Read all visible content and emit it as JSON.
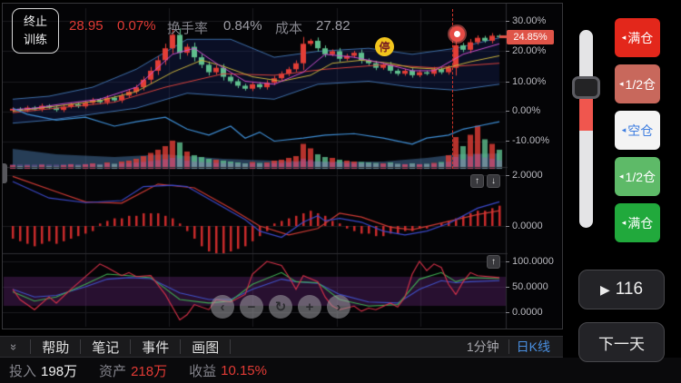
{
  "header": {
    "stop_training_line1": "终止",
    "stop_training_line2": "训练",
    "price": "28.95",
    "change_pct": "0.07%",
    "turnover_label": "换手率",
    "turnover_value": "0.84%",
    "cost_label": "成本",
    "cost_value": "27.82"
  },
  "axis": {
    "main_ticks": [
      "30.00%",
      "20.00%",
      "10.00%",
      "0.00%",
      "-10.00%"
    ],
    "current_tag": "24.85%",
    "macd_ticks": [
      "2.0000",
      "0.0000"
    ],
    "kdj_ticks": [
      "100.0000",
      "50.0000",
      "0.0000"
    ]
  },
  "markers": {
    "pause_badge": "停"
  },
  "icons": {
    "collapse": "»",
    "up_arrow": "↑",
    "down_arrow": "↓",
    "pos_arrow": "◂",
    "play": "▶"
  },
  "nav_buttons": [
    "‹",
    "−",
    "↻",
    "+",
    "›"
  ],
  "sidebar": {
    "positions": [
      {
        "label": "满仓"
      },
      {
        "label": "1/2仓"
      },
      {
        "label": "空仓"
      },
      {
        "label": "1/2仓"
      },
      {
        "label": "满仓"
      }
    ],
    "play_count": "116",
    "next_day": "下一天"
  },
  "toolbar": {
    "items": [
      "帮助",
      "笔记",
      "事件",
      "画图"
    ],
    "interval": "1分钟",
    "chart_type": "日K线"
  },
  "account": {
    "invest_label": "投入",
    "invest_value": "198万",
    "asset_label": "资产",
    "asset_value": "218万",
    "profit_label": "收益",
    "profit_value": "10.15%"
  },
  "chart_data": {
    "type": "candlestick",
    "panels": [
      "kline+volume",
      "macd",
      "kdj"
    ],
    "y_axis_main_pct": [
      30,
      20,
      10,
      0,
      -10
    ],
    "current_change_pct": 24.85,
    "macd_axis": [
      2.0,
      0.0
    ],
    "kdj_axis": [
      100.0,
      50.0,
      0.0
    ],
    "first_open_pct": 0.2,
    "closes_pct": [
      0.8,
      0.3,
      1.2,
      0.6,
      1.8,
      1.2,
      0.4,
      1.5,
      2.3,
      1.6,
      2.8,
      3.8,
      3.0,
      4.5,
      3.6,
      5.2,
      6.5,
      8.0,
      10.5,
      13.5,
      17.0,
      21.0,
      25.5,
      19.5,
      21.5,
      18.0,
      15.5,
      13.0,
      14.5,
      11.5,
      10.0,
      8.5,
      7.5,
      9.0,
      8.0,
      9.5,
      11.0,
      12.5,
      14.0,
      16.0,
      22.5,
      23.5,
      21.0,
      19.0,
      20.0,
      17.5,
      18.5,
      19.5,
      17.0,
      16.0,
      14.5,
      15.5,
      13.5,
      12.5,
      13.5,
      12.0,
      13.0,
      12.5,
      14.0,
      13.0,
      14.5,
      22.0,
      20.5,
      23.0,
      24.5,
      23.5,
      25.2,
      24.85
    ],
    "volumes": [
      8,
      6,
      7,
      5,
      9,
      6,
      5,
      8,
      10,
      7,
      10,
      12,
      9,
      14,
      11,
      16,
      18,
      22,
      28,
      35,
      42,
      50,
      62,
      58,
      38,
      30,
      26,
      22,
      20,
      18,
      16,
      14,
      12,
      15,
      13,
      14,
      18,
      20,
      24,
      28,
      55,
      45,
      32,
      26,
      24,
      20,
      18,
      16,
      15,
      14,
      13,
      12,
      14,
      11,
      10,
      12,
      10,
      11,
      13,
      15,
      30,
      70,
      50,
      75,
      95,
      65,
      55,
      42
    ],
    "macd_hist": [
      -0.5,
      -0.6,
      -0.7,
      -0.8,
      -0.7,
      -0.6,
      -0.7,
      -0.6,
      -0.5,
      -0.4,
      -0.3,
      -0.2,
      0.1,
      0.2,
      0.3,
      0.3,
      0.4,
      0.4,
      0.5,
      0.5,
      0.5,
      0.4,
      0.3,
      0.1,
      -0.2,
      -0.5,
      -0.8,
      -1.0,
      -1.1,
      -1.1,
      -1.0,
      -0.9,
      -0.8,
      -0.6,
      -0.4,
      -0.2,
      0.1,
      0.2,
      0.3,
      0.4,
      0.5,
      0.6,
      0.5,
      0.4,
      0.2,
      0.1,
      -0.1,
      -0.2,
      -0.3,
      -0.3,
      -0.4,
      -0.4,
      -0.3,
      -0.3,
      -0.2,
      -0.2,
      -0.1,
      -0.1,
      0.0,
      0.1,
      0.2,
      0.3,
      0.4,
      0.5,
      0.6,
      0.6,
      0.7,
      0.8
    ],
    "dea_line": [
      [
        0,
        1.95
      ],
      [
        6,
        1.35
      ],
      [
        10,
        0.95
      ],
      [
        15,
        0.9
      ],
      [
        20,
        1.65
      ],
      [
        25,
        1.5
      ],
      [
        30,
        0.7
      ],
      [
        34,
        0
      ],
      [
        38,
        -0.35
      ],
      [
        42,
        -0.1
      ],
      [
        45,
        0.5
      ],
      [
        48,
        0.35
      ],
      [
        52,
        -0.05
      ],
      [
        55,
        -0.15
      ],
      [
        58,
        0.05
      ],
      [
        64,
        0.45
      ],
      [
        67,
        0.6
      ]
    ],
    "dif_line": [
      [
        0,
        1.75
      ],
      [
        5,
        1.1
      ],
      [
        10,
        0.92
      ],
      [
        15,
        1.0
      ],
      [
        18,
        1.55
      ],
      [
        22,
        1.6
      ],
      [
        24,
        1.55
      ],
      [
        28,
        0.9
      ],
      [
        32,
        0.25
      ],
      [
        34,
        -0.2
      ],
      [
        37,
        -0.45
      ],
      [
        40,
        0.15
      ],
      [
        42,
        0.4
      ],
      [
        43,
        0.2
      ],
      [
        45,
        0.3
      ],
      [
        48,
        0.15
      ],
      [
        51,
        -0.2
      ],
      [
        54,
        -0.35
      ],
      [
        57,
        -0.2
      ],
      [
        60,
        0.1
      ],
      [
        64,
        0.7
      ],
      [
        67,
        0.95
      ]
    ],
    "kdj_j": [
      [
        0,
        45
      ],
      [
        1,
        25
      ],
      [
        3,
        5
      ],
      [
        5,
        30
      ],
      [
        6,
        18
      ],
      [
        8,
        45
      ],
      [
        10,
        70
      ],
      [
        12,
        95
      ],
      [
        13,
        88
      ],
      [
        15,
        72
      ],
      [
        16,
        78
      ],
      [
        17,
        70
      ],
      [
        19,
        72
      ],
      [
        21,
        35
      ],
      [
        23,
        -15
      ],
      [
        24,
        -5
      ],
      [
        25,
        15
      ],
      [
        27,
        5
      ],
      [
        28,
        25
      ],
      [
        30,
        20
      ],
      [
        32,
        35
      ],
      [
        33,
        75
      ],
      [
        35,
        100
      ],
      [
        37,
        92
      ],
      [
        38,
        70
      ],
      [
        39,
        45
      ],
      [
        40,
        72
      ],
      [
        42,
        60
      ],
      [
        43,
        30
      ],
      [
        44,
        12
      ],
      [
        45,
        5
      ],
      [
        47,
        12
      ],
      [
        48,
        2
      ],
      [
        49,
        8
      ],
      [
        50,
        5
      ],
      [
        52,
        18
      ],
      [
        53,
        10
      ],
      [
        54,
        30
      ],
      [
        55,
        75
      ],
      [
        56,
        100
      ],
      [
        57,
        82
      ],
      [
        58,
        95
      ],
      [
        59,
        88
      ],
      [
        60,
        55
      ],
      [
        61,
        35
      ],
      [
        62,
        60
      ],
      [
        63,
        78
      ],
      [
        64,
        72
      ],
      [
        67,
        68
      ]
    ],
    "kdj_k": [
      [
        0,
        40
      ],
      [
        3,
        22
      ],
      [
        6,
        30
      ],
      [
        10,
        55
      ],
      [
        13,
        75
      ],
      [
        16,
        72
      ],
      [
        19,
        68
      ],
      [
        23,
        25
      ],
      [
        27,
        18
      ],
      [
        30,
        22
      ],
      [
        33,
        55
      ],
      [
        37,
        78
      ],
      [
        39,
        60
      ],
      [
        42,
        58
      ],
      [
        45,
        25
      ],
      [
        49,
        12
      ],
      [
        53,
        15
      ],
      [
        56,
        65
      ],
      [
        59,
        78
      ],
      [
        61,
        60
      ],
      [
        63,
        68
      ],
      [
        67,
        66
      ]
    ],
    "kdj_d": [
      [
        0,
        45
      ],
      [
        3,
        30
      ],
      [
        6,
        33
      ],
      [
        10,
        50
      ],
      [
        13,
        65
      ],
      [
        16,
        68
      ],
      [
        19,
        66
      ],
      [
        23,
        38
      ],
      [
        27,
        25
      ],
      [
        30,
        25
      ],
      [
        33,
        45
      ],
      [
        37,
        65
      ],
      [
        39,
        60
      ],
      [
        42,
        57
      ],
      [
        45,
        35
      ],
      [
        49,
        20
      ],
      [
        53,
        18
      ],
      [
        56,
        45
      ],
      [
        59,
        62
      ],
      [
        61,
        58
      ],
      [
        63,
        60
      ],
      [
        67,
        62
      ]
    ],
    "ma_fast": [
      [
        0,
        0.5
      ],
      [
        3,
        1
      ],
      [
        7,
        2.5
      ],
      [
        12,
        4
      ],
      [
        17,
        8
      ],
      [
        22,
        19
      ],
      [
        25,
        21
      ],
      [
        28,
        16
      ],
      [
        32,
        10
      ],
      [
        36,
        9
      ],
      [
        40,
        13
      ],
      [
        43,
        19
      ],
      [
        47,
        18
      ],
      [
        51,
        16
      ],
      [
        55,
        13.5
      ],
      [
        58,
        13.5
      ],
      [
        62,
        19
      ],
      [
        67,
        22.5
      ]
    ],
    "ma_mid": [
      [
        0,
        0
      ],
      [
        3,
        0.8
      ],
      [
        7,
        2
      ],
      [
        12,
        3.5
      ],
      [
        17,
        6.5
      ],
      [
        22,
        13
      ],
      [
        26,
        17
      ],
      [
        29,
        15
      ],
      [
        33,
        11.5
      ],
      [
        37,
        10
      ],
      [
        41,
        12
      ],
      [
        44,
        16
      ],
      [
        48,
        17
      ],
      [
        52,
        16
      ],
      [
        55,
        14.5
      ],
      [
        59,
        14
      ],
      [
        63,
        16.5
      ],
      [
        67,
        18.5
      ]
    ],
    "ma_slow": [
      [
        0,
        -0.5
      ],
      [
        6,
        1
      ],
      [
        14,
        3
      ],
      [
        21,
        8
      ],
      [
        29,
        12.5
      ],
      [
        36,
        12
      ],
      [
        43,
        14
      ],
      [
        51,
        15.5
      ],
      [
        58,
        14.5
      ],
      [
        67,
        16
      ]
    ],
    "boll_upper": [
      [
        0,
        4
      ],
      [
        5,
        5
      ],
      [
        11,
        8
      ],
      [
        17,
        14
      ],
      [
        24,
        24
      ],
      [
        30,
        24
      ],
      [
        36,
        18
      ],
      [
        42,
        20
      ],
      [
        49,
        21
      ],
      [
        55,
        19
      ],
      [
        61,
        21
      ],
      [
        67,
        24.5
      ]
    ],
    "boll_lower": [
      [
        0,
        -4
      ],
      [
        5,
        -3
      ],
      [
        11,
        -1
      ],
      [
        17,
        1
      ],
      [
        24,
        6
      ],
      [
        30,
        5
      ],
      [
        36,
        4
      ],
      [
        42,
        9
      ],
      [
        49,
        10
      ],
      [
        55,
        8
      ],
      [
        61,
        7
      ],
      [
        67,
        9
      ]
    ],
    "obv_line": [
      [
        0,
        1
      ],
      [
        2,
        -1
      ],
      [
        6,
        -3
      ],
      [
        10,
        -2
      ],
      [
        14,
        -5
      ],
      [
        17,
        -3.5
      ],
      [
        21,
        -2
      ],
      [
        24,
        -6
      ],
      [
        27,
        -8
      ],
      [
        30,
        -5
      ],
      [
        32,
        -9
      ],
      [
        34,
        -7
      ],
      [
        36,
        -10
      ],
      [
        40,
        -9
      ],
      [
        43,
        -8
      ],
      [
        47,
        -7.5
      ],
      [
        51,
        -9
      ],
      [
        55,
        -11
      ],
      [
        57,
        -9
      ],
      [
        60,
        -8
      ],
      [
        62,
        -6
      ],
      [
        64,
        -5
      ],
      [
        67,
        -3.5
      ]
    ],
    "vol_ma_area": [
      [
        0,
        22
      ],
      [
        6,
        16
      ],
      [
        14,
        13
      ],
      [
        21,
        16
      ],
      [
        29,
        11
      ],
      [
        36,
        9
      ],
      [
        43,
        8
      ],
      [
        51,
        8
      ],
      [
        57,
        12
      ],
      [
        61,
        16
      ],
      [
        67,
        17
      ]
    ],
    "event_candle_index": 61,
    "colors": {
      "up": "#e23e36",
      "down": "#5fbf8d",
      "boll": "#3e6ea8",
      "boll_fill": "rgba(28,48,120,0.28)",
      "ma_fast": "#cf4fd0",
      "ma_mid": "#c9b23c",
      "ma_slow": "#d8413c",
      "obv": "#3f8fd6",
      "macd_dif": "#3b49c9",
      "macd_dea": "#cf3b35",
      "macd_hist": "#c92a2a",
      "kdj_j": "#d8324a",
      "kdj_k": "#3faf52",
      "kdj_d": "#4052c9",
      "kdj_band": "rgba(110,40,130,0.35)",
      "vol_area": "rgba(80,130,185,0.45)",
      "vol_purple": "rgba(155,95,190,0.45)",
      "grid": "#1b1b1f",
      "event_line": "#d2342a",
      "tag_bg": "#df5448"
    }
  }
}
